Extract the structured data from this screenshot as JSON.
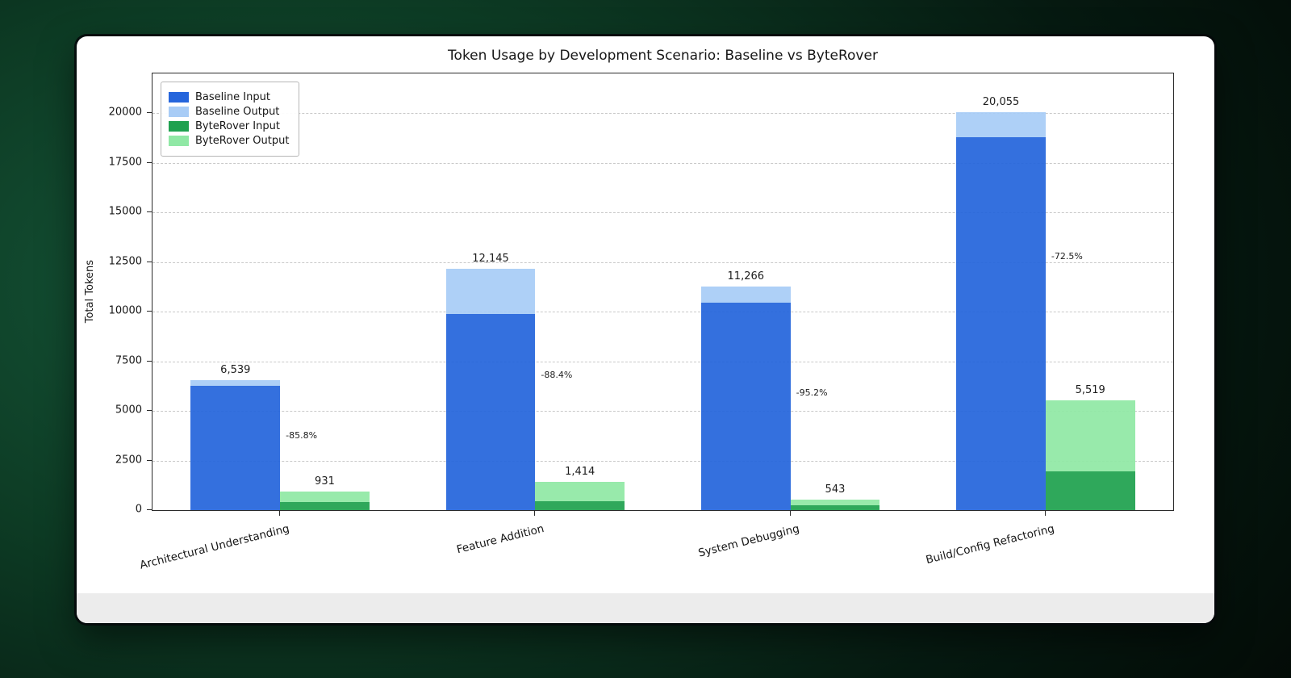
{
  "card": {
    "bg": "#ffffff",
    "footer_bg": "#ececec"
  },
  "background": {
    "center_color": "#16583a",
    "edge_color": "#030a06"
  },
  "chart_data": {
    "type": "bar",
    "title": "Token Usage by Development Scenario: Baseline vs ByteRover",
    "xlabel": "",
    "ylabel": "Total Tokens",
    "ylim": [
      0,
      22000
    ],
    "yticks": [
      0,
      2500,
      5000,
      7500,
      10000,
      12500,
      15000,
      17500,
      20000
    ],
    "ytick_labels": [
      "0",
      "2500",
      "5000",
      "7500",
      "10000",
      "12500",
      "15000",
      "17500",
      "20000"
    ],
    "grid": "dashed-horizontal",
    "legend_position": "upper-left",
    "categories": [
      "Architectural Understanding",
      "Feature Addition",
      "System Debugging",
      "Build/Config Refactoring"
    ],
    "series": [
      {
        "name": "Baseline Input",
        "color": "#2565DC",
        "stack": "baseline",
        "values": [
          6250,
          9900,
          10466,
          18800
        ]
      },
      {
        "name": "Baseline Output",
        "color": "#A8CCF6",
        "stack": "baseline",
        "values": [
          289,
          2245,
          800,
          1255
        ]
      },
      {
        "name": "ByteRover Input",
        "color": "#1FA14F",
        "stack": "byterover",
        "values": [
          400,
          450,
          250,
          1950
        ]
      },
      {
        "name": "ByteRover Output",
        "color": "#90E8A5",
        "stack": "byterover",
        "values": [
          531,
          964,
          293,
          3569
        ]
      }
    ],
    "baseline_totals": [
      6539,
      12145,
      11266,
      20055
    ],
    "byterover_totals": [
      931,
      1414,
      543,
      5519
    ],
    "baseline_total_labels": [
      "6,539",
      "12,145",
      "11,266",
      "20,055"
    ],
    "byterover_total_labels": [
      "931",
      "1,414",
      "543",
      "5,519"
    ],
    "reduction_labels": [
      "-85.8%",
      "-88.4%",
      "-95.2%",
      "-72.5%"
    ]
  }
}
